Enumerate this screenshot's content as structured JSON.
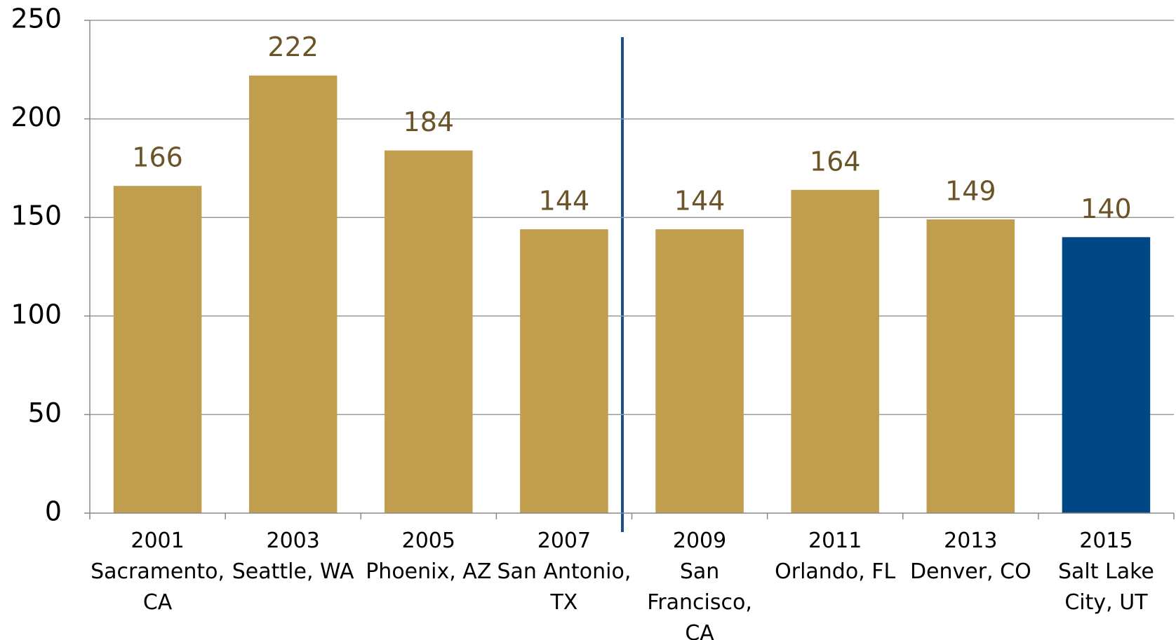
{
  "chart_data": {
    "type": "bar",
    "categories": [
      [
        "2001",
        "Sacramento,",
        "CA"
      ],
      [
        "2003",
        "Seattle, WA"
      ],
      [
        "2005",
        "Phoenix, AZ"
      ],
      [
        "2007",
        "San Antonio,",
        "TX"
      ],
      [
        "2009",
        "San",
        "Francisco,",
        "CA"
      ],
      [
        "2011",
        "Orlando, FL"
      ],
      [
        "2013",
        "Denver, CO"
      ],
      [
        "2015",
        "Salt Lake",
        "City, UT"
      ]
    ],
    "values": [
      166,
      222,
      184,
      144,
      144,
      164,
      149,
      140
    ],
    "colors": [
      "#c19d4e",
      "#c19d4e",
      "#c19d4e",
      "#c19d4e",
      "#c19d4e",
      "#c19d4e",
      "#c19d4e",
      "#004785"
    ],
    "ylim": [
      0,
      250
    ],
    "yticks": [
      0,
      50,
      100,
      150,
      200,
      250
    ],
    "grid": true
  }
}
